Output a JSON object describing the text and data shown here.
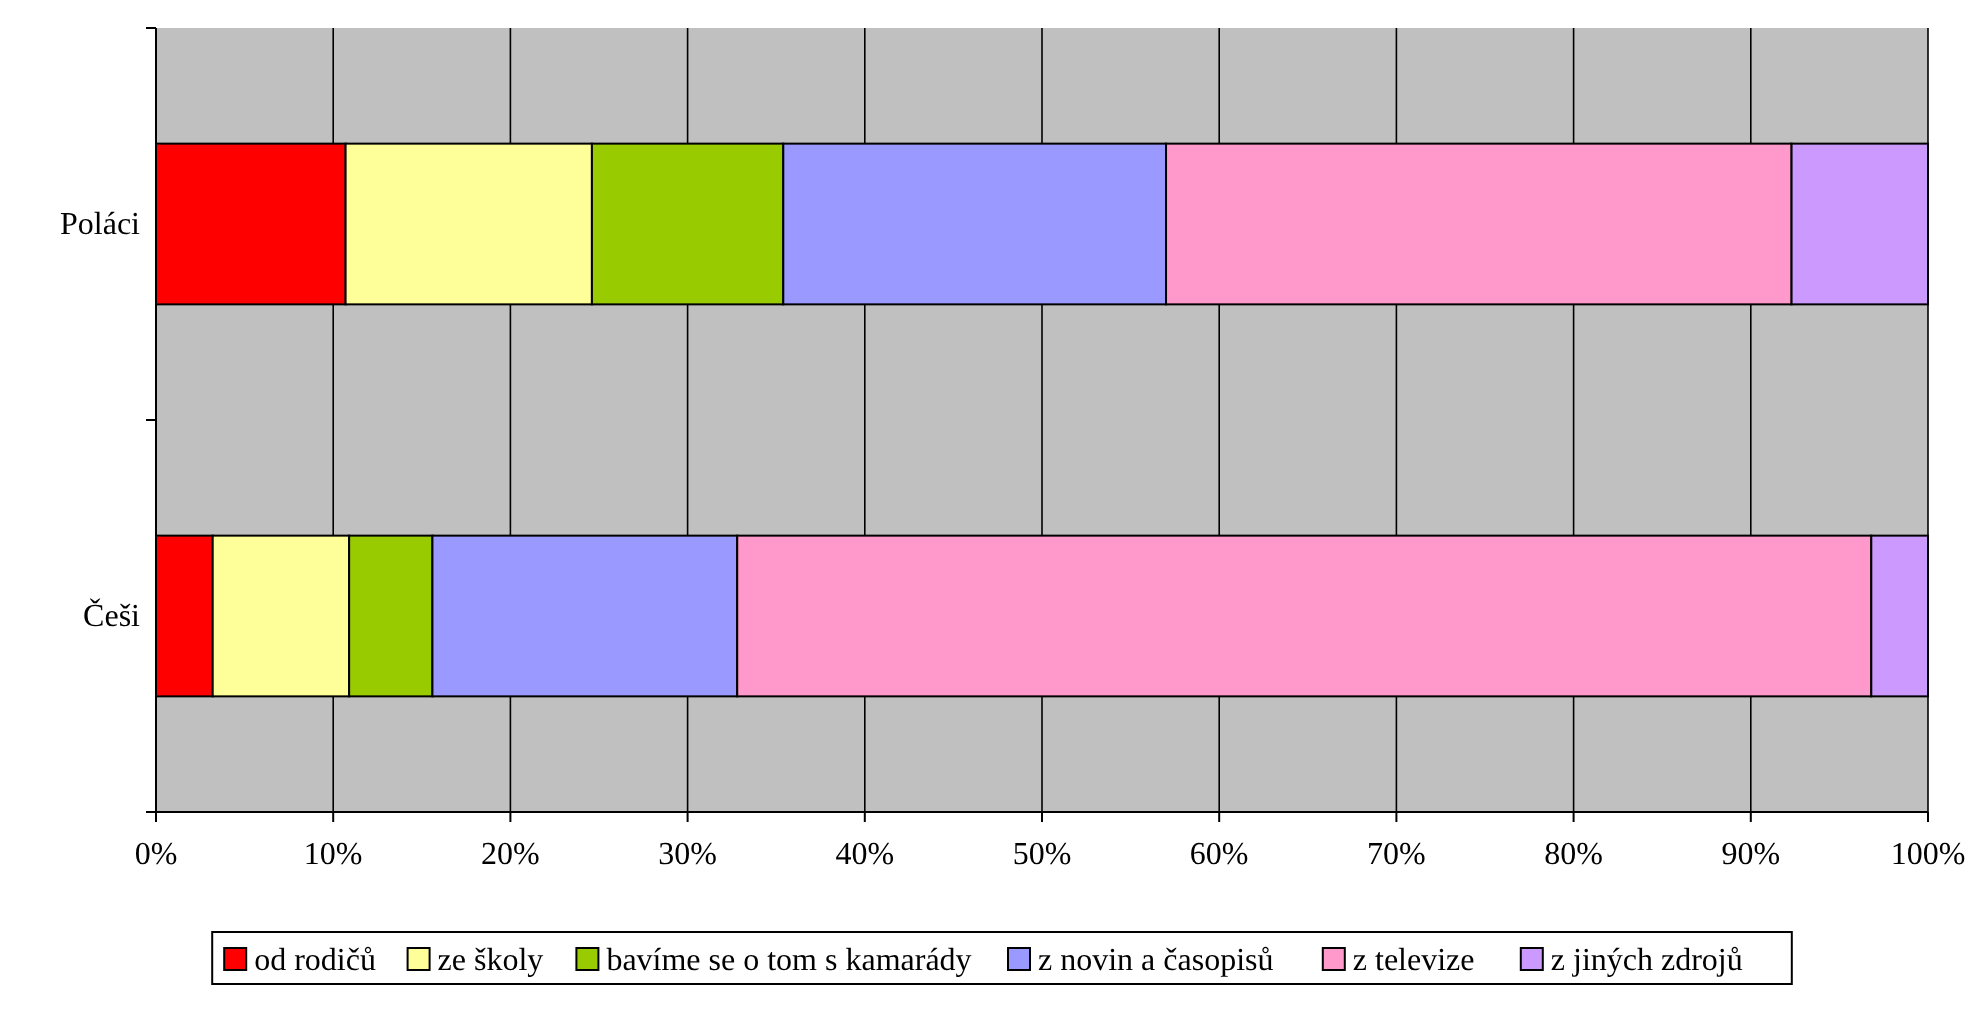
{
  "chart_data": {
    "type": "bar",
    "orientation": "horizontal",
    "stacked": true,
    "categories": [
      "Poláci",
      "Češi"
    ],
    "series": [
      {
        "name": "od rodičů",
        "color": "#ff0000",
        "values": [
          10.7,
          3.2
        ]
      },
      {
        "name": "ze školy",
        "color": "#ffff99",
        "values": [
          13.9,
          7.7
        ]
      },
      {
        "name": "bavíme se o tom s kamarády",
        "color": "#99cc00",
        "values": [
          10.8,
          4.7
        ]
      },
      {
        "name": "z novin a časopisů",
        "color": "#9999ff",
        "values": [
          21.6,
          17.2
        ]
      },
      {
        "name": "z televize",
        "color": "#ff99cc",
        "values": [
          35.3,
          64.0
        ]
      },
      {
        "name": "z jiných zdrojů",
        "color": "#cc99ff",
        "values": [
          7.7,
          3.2
        ]
      }
    ],
    "xlim": [
      0,
      100
    ],
    "xticks": [
      {
        "value": 0,
        "label": "0%"
      },
      {
        "value": 10,
        "label": "10%"
      },
      {
        "value": 20,
        "label": "20%"
      },
      {
        "value": 30,
        "label": "30%"
      },
      {
        "value": 40,
        "label": "40%"
      },
      {
        "value": 50,
        "label": "50%"
      },
      {
        "value": 60,
        "label": "60%"
      },
      {
        "value": 70,
        "label": "70%"
      },
      {
        "value": 80,
        "label": "80%"
      },
      {
        "value": 90,
        "label": "90%"
      },
      {
        "value": 100,
        "label": "100%"
      }
    ],
    "grid": "x",
    "legend": "bottom"
  }
}
